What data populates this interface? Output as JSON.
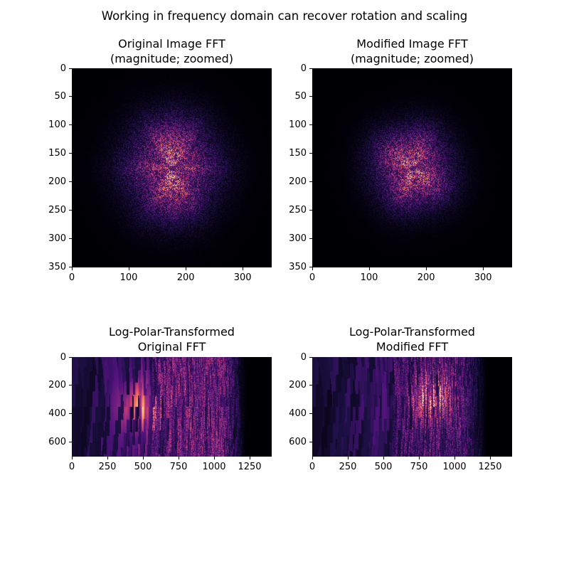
{
  "figure": {
    "suptitle": "Working in frequency domain can recover rotation and scaling",
    "colormap": "magma",
    "colormap_stops": [
      "#000004",
      "#1c1044",
      "#4f127b",
      "#812581",
      "#b5367a",
      "#e55064",
      "#fb8761",
      "#fec287",
      "#fcfdbf"
    ]
  },
  "chart_data": [
    {
      "type": "heatmap",
      "title": "Original Image FFT\n(magnitude; zoomed)",
      "title_lines": [
        "Original Image FFT",
        "(magnitude; zoomed)"
      ],
      "xlabel": "",
      "ylabel": "",
      "xlim": [
        0,
        351
      ],
      "ylim": [
        351,
        0
      ],
      "xticks": [
        0,
        100,
        200,
        300
      ],
      "yticks": [
        0,
        50,
        100,
        150,
        200,
        250,
        300,
        350
      ],
      "grid": false,
      "description": "Centered FFT magnitude; bright cluster near (175,175) radius ~70, vertical streak pattern"
    },
    {
      "type": "heatmap",
      "title": "Modified Image FFT\n(magnitude; zoomed)",
      "title_lines": [
        "Modified Image FFT",
        "(magnitude; zoomed)"
      ],
      "xlabel": "",
      "ylabel": "",
      "xlim": [
        0,
        351
      ],
      "ylim": [
        351,
        0
      ],
      "xticks": [
        0,
        100,
        200,
        300
      ],
      "yticks": [
        0,
        50,
        100,
        150,
        200,
        250,
        300,
        350
      ],
      "grid": false,
      "description": "Centered FFT magnitude; rotated and scaled cluster near (175,175) radius ~60, diagonal streak pattern"
    },
    {
      "type": "heatmap",
      "title": "Log-Polar-Transformed\nOriginal FFT",
      "title_lines": [
        "Log-Polar-Transformed",
        "Original FFT"
      ],
      "xlabel": "",
      "ylabel": "",
      "xlim": [
        0,
        1405
      ],
      "ylim": [
        705,
        0
      ],
      "xticks": [
        0,
        250,
        500,
        750,
        1000,
        1250
      ],
      "yticks": [
        0,
        200,
        400,
        600
      ],
      "grid": false,
      "description": "Log-polar warp; bright peak near x~450,y~350; signal fades to black beyond x~1150"
    },
    {
      "type": "heatmap",
      "title": "Log-Polar-Transformed\nModified FFT",
      "title_lines": [
        "Log-Polar-Transformed",
        "Modified FFT"
      ],
      "xlabel": "",
      "ylabel": "",
      "xlim": [
        0,
        1405
      ],
      "ylim": [
        705,
        0
      ],
      "xticks": [
        0,
        250,
        500,
        750,
        1000,
        1250
      ],
      "yticks": [
        0,
        200,
        400,
        600
      ],
      "grid": false,
      "description": "Log-polar warp shifted right/up; bright peak near x~850,y~280; fades to black beyond x~1150"
    }
  ],
  "panels": [
    {
      "id": "orig-fft",
      "title_1": "Original Image FFT",
      "title_2": "(magnitude; zoomed)",
      "yticklabels": [
        "0",
        "50",
        "100",
        "150",
        "200",
        "250",
        "300",
        "350"
      ],
      "xticklabels": [
        "0",
        "100",
        "200",
        "300"
      ]
    },
    {
      "id": "mod-fft",
      "title_1": "Modified Image FFT",
      "title_2": "(magnitude; zoomed)",
      "yticklabels": [
        "0",
        "50",
        "100",
        "150",
        "200",
        "250",
        "300",
        "350"
      ],
      "xticklabels": [
        "0",
        "100",
        "200",
        "300"
      ]
    },
    {
      "id": "orig-logpolar",
      "title_1": "Log-Polar-Transformed",
      "title_2": "Original FFT",
      "yticklabels": [
        "0",
        "200",
        "400",
        "600"
      ],
      "xticklabels": [
        "0",
        "250",
        "500",
        "750",
        "1000",
        "1250"
      ]
    },
    {
      "id": "mod-logpolar",
      "title_1": "Log-Polar-Transformed",
      "title_2": "Modified FFT",
      "yticklabels": [
        "0",
        "200",
        "400",
        "600"
      ],
      "xticklabels": [
        "0",
        "250",
        "500",
        "750",
        "1000",
        "1250"
      ]
    }
  ]
}
